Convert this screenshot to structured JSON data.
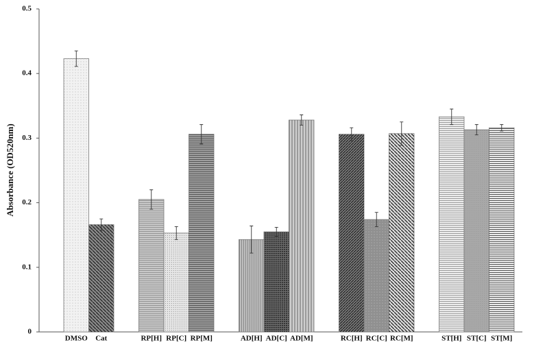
{
  "chart_data": {
    "type": "bar",
    "y_label": "Absorbance (OD520nm)",
    "categories": [
      "DMSO",
      "Cat",
      null,
      "RP[H]",
      "RP[C]",
      "RP[M]",
      null,
      "AD[H]",
      "AD[C]",
      "AD[M]",
      null,
      "RC[H]",
      "RC[C]",
      "RC[M]",
      null,
      "ST[H]",
      "ST[C]",
      "ST[M]"
    ],
    "values": [
      0.423,
      0.166,
      null,
      0.205,
      0.153,
      0.306,
      null,
      0.143,
      0.155,
      0.328,
      null,
      0.306,
      0.174,
      0.307,
      null,
      0.333,
      0.313,
      0.316
    ],
    "errors": [
      0.012,
      0.009,
      null,
      0.015,
      0.01,
      0.015,
      null,
      0.021,
      0.007,
      0.008,
      null,
      0.01,
      0.011,
      0.018,
      null,
      0.012,
      0.008,
      0.005
    ],
    "colors": [
      "#f2f2f2",
      "#8a8a8a",
      null,
      "#c8c8c8",
      "#e6e6e6",
      "#a0a0a0",
      null,
      "#c0c0c0",
      "#6a6a6a",
      "#cfcfcf",
      null,
      "#7a7a7a",
      "#909090",
      "#dcdcdc",
      null,
      "#ededed",
      "#a8a8a8",
      "#ececec"
    ],
    "ylim": [
      0,
      0.5
    ],
    "yticks": [
      0,
      0.1,
      0.2,
      0.3,
      0.4,
      0.5
    ],
    "grid": false
  }
}
